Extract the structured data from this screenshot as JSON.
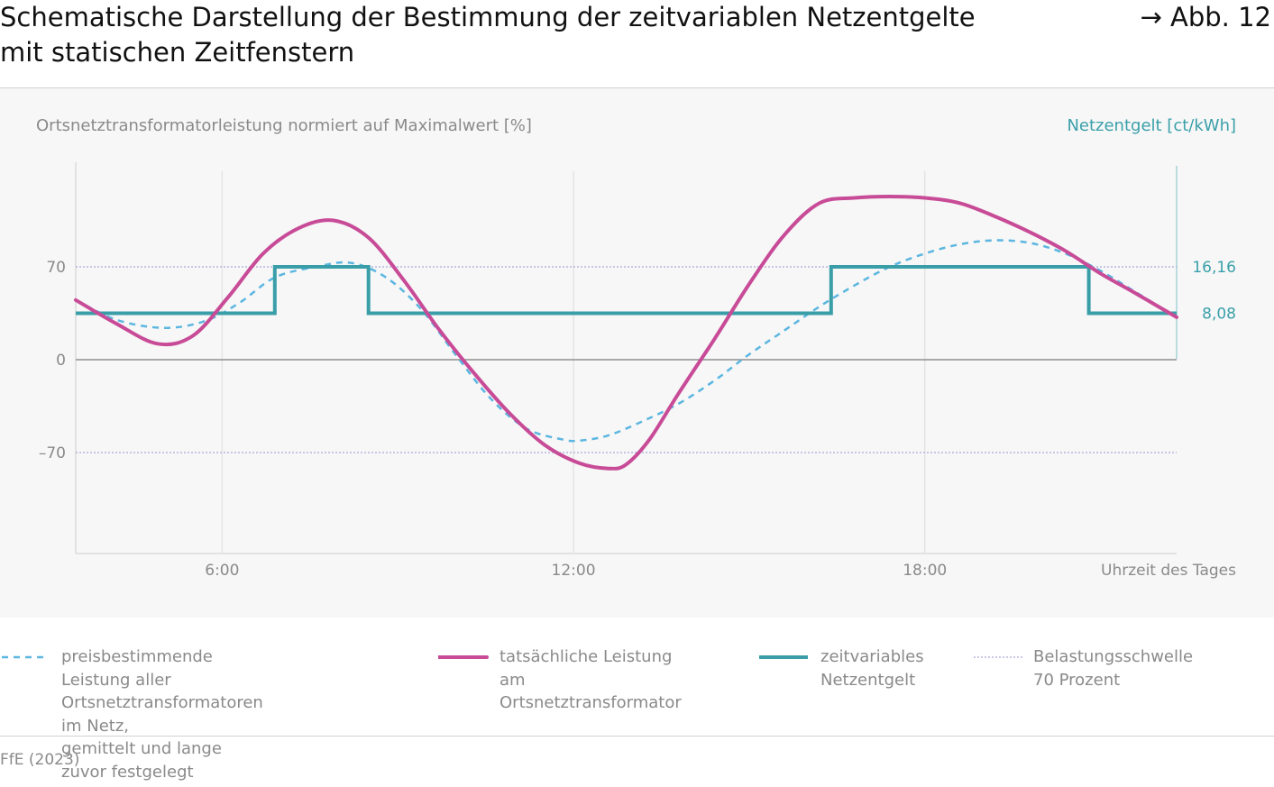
{
  "header": {
    "title_line1": "Schematische Darstellung der Bestimmung der zeitvariablen Netzentgelte",
    "title_line2": "mit statischen Zeitfenstern",
    "figure_ref": "→ Abb. 12"
  },
  "colors": {
    "dashed_line": "#5bb6e0",
    "actual_line": "#c84b97",
    "tariff_line": "#3a9ea8",
    "threshold_line": "#a8a8d8",
    "axis_text": "#8a8a8a",
    "panel_bg": "#f7f7f7"
  },
  "chart_data": {
    "type": "line",
    "ylabel": "Ortsnetztransformatorleistung normiert auf Maximalwert [%]",
    "y2label": "Netzentgelt [ct/kWh]",
    "xlabel": "Uhrzeit des Tages",
    "x_range_hours": [
      3.5,
      22.3
    ],
    "ylim": [
      -100,
      100
    ],
    "x_ticks": [
      {
        "hour": 6,
        "label": "6:00"
      },
      {
        "hour": 12,
        "label": "12:00"
      },
      {
        "hour": 18,
        "label": "18:00"
      }
    ],
    "y_ticks": [
      {
        "value": 70,
        "label": "70"
      },
      {
        "value": 0,
        "label": "0"
      },
      {
        "value": -70,
        "label": "–70"
      }
    ],
    "y2_ticks": [
      {
        "value": 16.16,
        "label": "16,16"
      },
      {
        "value": 8.08,
        "label": "8,08"
      }
    ],
    "y2_scale": {
      "ct_per_percent": 0.23086
    },
    "series": [
      {
        "name": "preisbestimmende Leistung aller Ortsnetztransformatoren im Netz, gemittelt und lange zuvor festgelegt",
        "style": "dashed",
        "x": [
          3.5,
          4.2,
          5.0,
          5.7,
          6.3,
          6.9,
          7.6,
          8.2,
          8.8,
          9.4,
          10.0,
          10.6,
          11.2,
          11.8,
          12.1,
          12.6,
          13.2,
          13.8,
          14.4,
          15.0,
          15.6,
          16.2,
          16.8,
          17.4,
          18.0,
          18.6,
          19.2,
          19.8,
          20.4,
          21.0,
          21.6,
          22.3
        ],
        "y": [
          45,
          30,
          24,
          29,
          43,
          62,
          70,
          73,
          62,
          38,
          3,
          -30,
          -52,
          -60,
          -61,
          -57,
          -46,
          -33,
          -16,
          4,
          22,
          40,
          56,
          70,
          80,
          87,
          90,
          88,
          80,
          67,
          51,
          32
        ]
      },
      {
        "name": "tatsächliche Leistung am Ortsnetztransformator",
        "style": "solid",
        "x": [
          3.5,
          4.2,
          4.9,
          5.5,
          6.1,
          6.7,
          7.3,
          7.9,
          8.5,
          9.1,
          9.7,
          10.3,
          10.9,
          11.5,
          12.1,
          12.6,
          12.9,
          13.3,
          13.8,
          14.4,
          15.0,
          15.6,
          16.2,
          16.8,
          17.4,
          18.0,
          18.6,
          19.2,
          19.8,
          20.4,
          21.0,
          21.6,
          22.3
        ],
        "y": [
          45,
          27,
          12,
          18,
          47,
          80,
          99,
          105,
          92,
          60,
          23,
          -10,
          -40,
          -64,
          -78,
          -82,
          -79,
          -60,
          -25,
          15,
          57,
          94,
          118,
          122,
          123,
          122,
          118,
          108,
          96,
          82,
          65,
          50,
          32
        ]
      },
      {
        "name": "zeitvariables Netzentgelt",
        "style": "step",
        "x": [
          3.5,
          6.9,
          6.9,
          8.5,
          8.5,
          16.4,
          16.4,
          20.8,
          20.8,
          22.3
        ],
        "y": [
          8.08,
          8.08,
          16.16,
          16.16,
          8.08,
          8.08,
          16.16,
          16.16,
          8.08,
          8.08
        ]
      },
      {
        "name": "Belastungsschwelle 70 Prozent",
        "style": "dotted",
        "threshold_values": [
          70,
          -70
        ]
      }
    ],
    "legend": [
      {
        "key": "dashed",
        "text": "preisbestimmende Leistung aller\nOrtsnetztransformatoren im Netz,\ngemittelt und lange zuvor festgelegt"
      },
      {
        "key": "solid",
        "text": "tatsächliche Leistung am\nOrtsnetztransformator"
      },
      {
        "key": "step",
        "text": "zeitvariables\nNetzentgelt"
      },
      {
        "key": "dotted",
        "text": "Belastungsschwelle\n70 Prozent"
      }
    ],
    "legend_placement": "bottom",
    "grid": "vertical"
  },
  "footer": {
    "source": "FfE (2023)"
  }
}
